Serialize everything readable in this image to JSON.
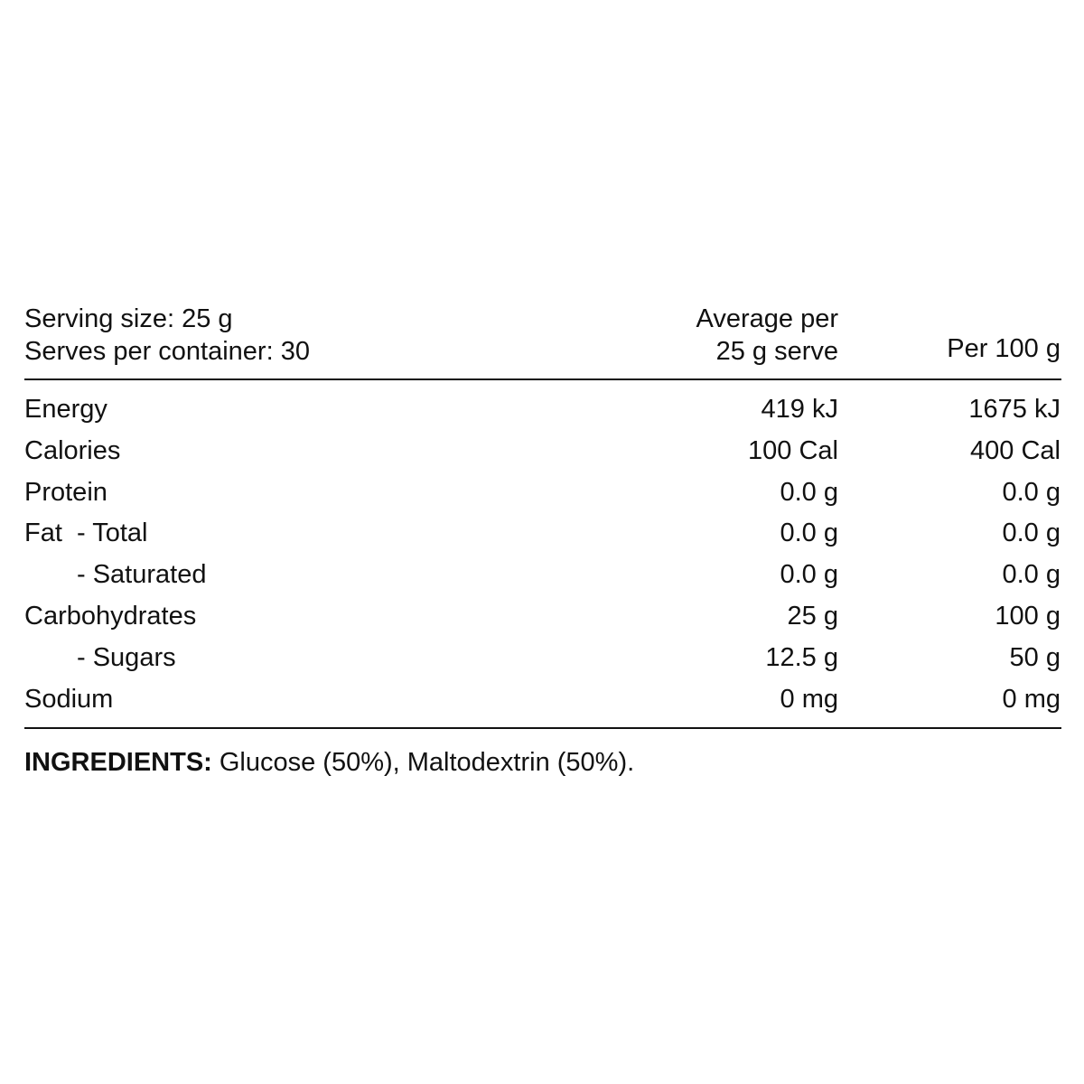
{
  "header": {
    "serving": [
      "Serving size: 25 g",
      "Serves per container: 30"
    ],
    "per_serve": [
      "Average per",
      "25 g serve"
    ],
    "per_100g": "Per 100 g"
  },
  "table": {
    "rows": [
      [
        "Energy",
        "419 kJ",
        "1675 kJ"
      ],
      [
        "Calories",
        "100 Cal",
        "400 Cal"
      ],
      [
        "Protein",
        "0.0 g",
        "0.0 g"
      ],
      [
        "Fat  - Total",
        "0.0 g",
        "0.0 g"
      ],
      [
        "- Saturated",
        "0.0 g",
        "0.0 g"
      ],
      [
        "Carbohydrates",
        "25 g",
        "100 g"
      ],
      [
        "- Sugars",
        "12.5 g",
        "50 g"
      ],
      [
        "Sodium",
        "0 mg",
        "0 mg"
      ]
    ]
  },
  "ingredients": {
    "label": "INGREDIENTS:",
    "text": "Glucose (50%), Maltodextrin (50%)."
  }
}
